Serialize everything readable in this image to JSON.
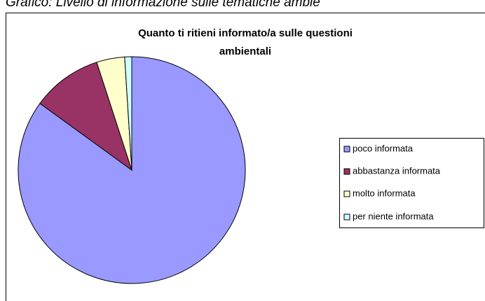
{
  "caption": "Grafico: Livello di informazione sulle tematiche ambie",
  "chart_data": {
    "type": "pie",
    "title": [
      "Quanto ti ritieni informato/a sulle questioni",
      "ambientali"
    ],
    "categories": [
      "poco informata",
      "abbastanza informata",
      "molto informata",
      "per niente informata"
    ],
    "values": [
      85,
      10,
      4,
      1
    ],
    "colors": [
      "#9999ff",
      "#993366",
      "#ffffcc",
      "#ccffff"
    ],
    "legend": "right"
  }
}
